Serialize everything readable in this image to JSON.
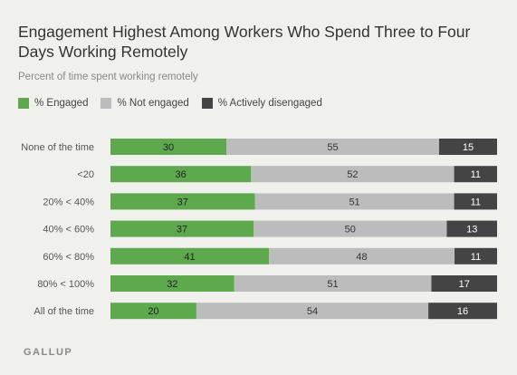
{
  "title": "Engagement Highest Among Workers Who Spend Three to Four Days Working Remotely",
  "subtitle": "Percent of time spent working remotely",
  "footer": "GALLUP",
  "colors": {
    "engaged": "#5ea94e",
    "not_engaged": "#bcbcbc",
    "actively_disengaged": "#444444"
  },
  "chart_data": {
    "type": "bar",
    "orientation": "horizontal",
    "stacked": true,
    "categories": [
      "None of the time",
      "<20",
      "20% < 40%",
      "40% < 60%",
      "60% < 80%",
      "80% < 100%",
      "All of the time"
    ],
    "series": [
      {
        "name": "% Engaged",
        "values": [
          30,
          36,
          37,
          37,
          41,
          32,
          20
        ],
        "color": "#5ea94e"
      },
      {
        "name": "% Not engaged",
        "values": [
          55,
          52,
          51,
          50,
          48,
          51,
          54
        ],
        "color": "#bcbcbc"
      },
      {
        "name": "% Actively disengaged",
        "values": [
          15,
          11,
          11,
          13,
          11,
          17,
          16
        ],
        "color": "#444444"
      }
    ],
    "legend": "top-left",
    "grid": false
  }
}
